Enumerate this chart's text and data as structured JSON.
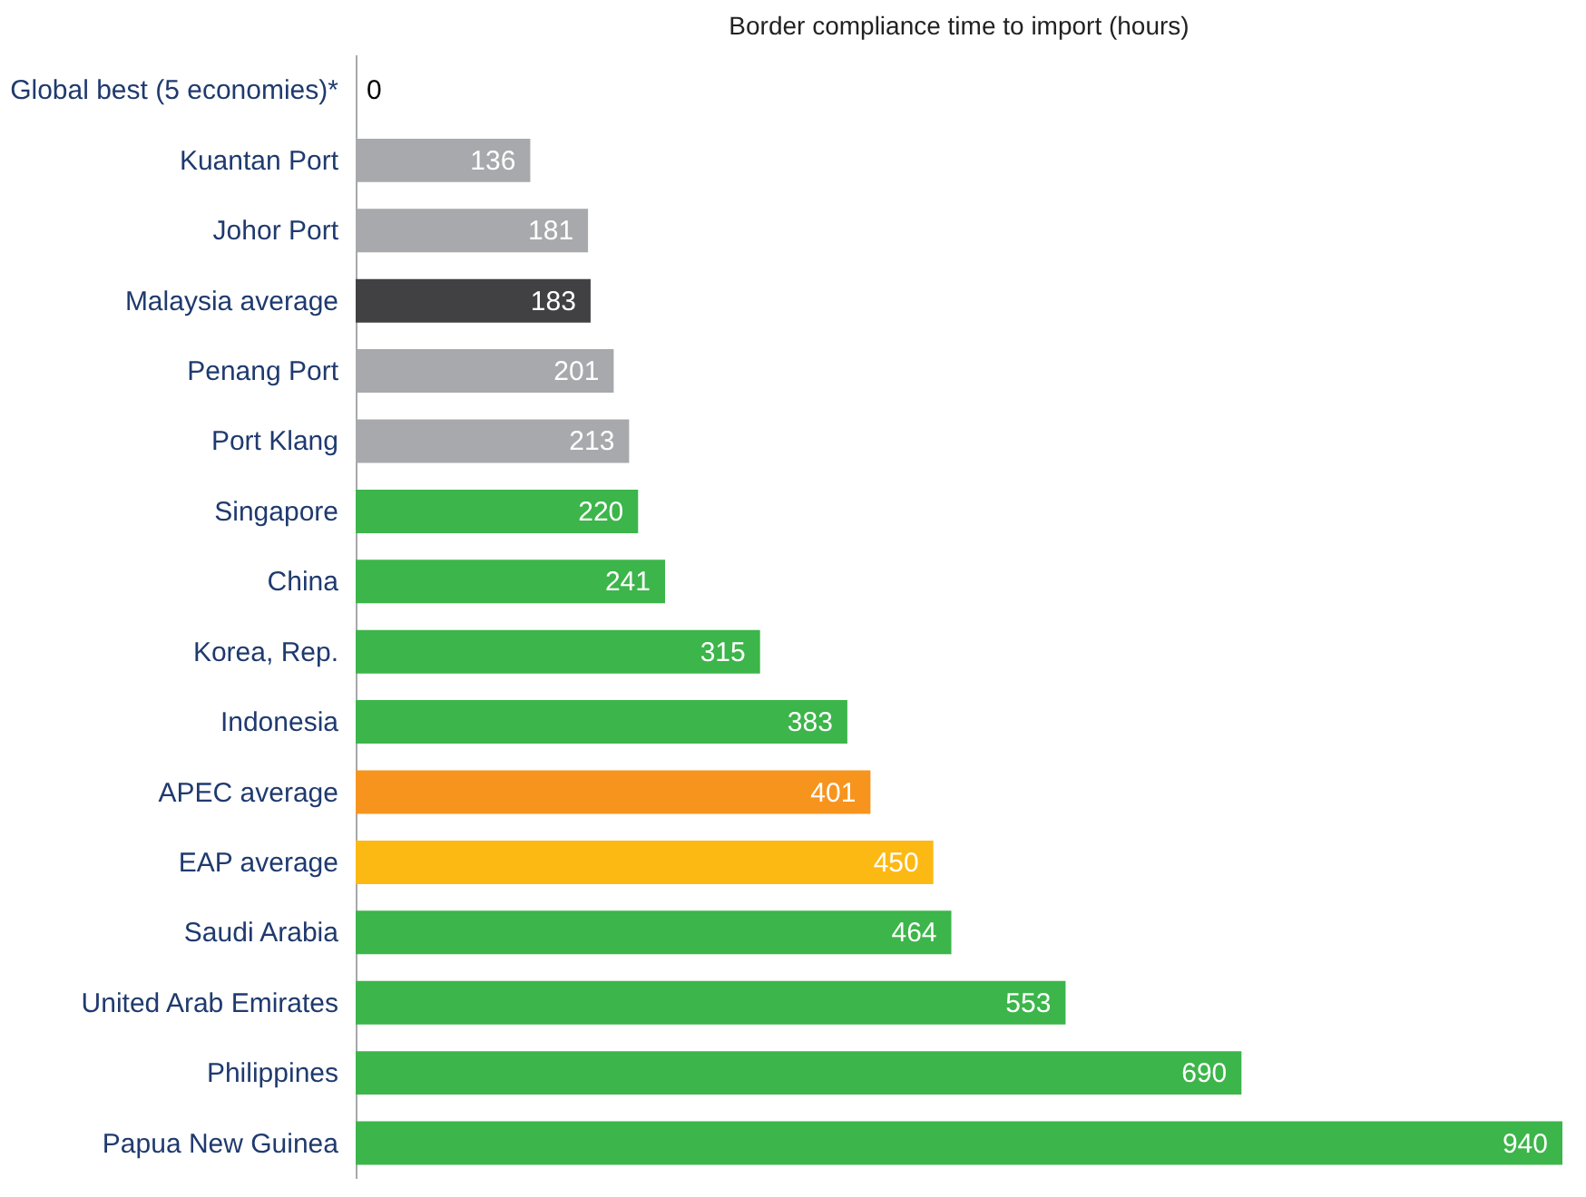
{
  "chart_data": {
    "type": "bar",
    "orientation": "horizontal",
    "title": "Border compliance time to import (hours)",
    "categories": [
      "Global best (5 economies)*",
      "Kuantan Port",
      "Johor Port",
      "Malaysia average",
      "Penang Port",
      "Port Klang",
      "Singapore",
      "China",
      "Korea, Rep.",
      "Indonesia",
      "APEC average",
      "EAP average",
      "Saudi Arabia",
      "United Arab Emirates",
      "Philippines",
      "Papua New Guinea"
    ],
    "values": [
      0,
      136,
      181,
      183,
      201,
      213,
      220,
      241,
      315,
      383,
      401,
      450,
      464,
      553,
      690,
      940
    ],
    "colors": [
      "#3cb54a",
      "#a7a9ac",
      "#a7a9ac",
      "#414042",
      "#a7a9ac",
      "#a7a9ac",
      "#3cb54a",
      "#3cb54a",
      "#3cb54a",
      "#3cb54a",
      "#f7941d",
      "#fdb913",
      "#3cb54a",
      "#3cb54a",
      "#3cb54a",
      "#3cb54a"
    ],
    "xlim": [
      0,
      940
    ],
    "tick_labels": "y",
    "data_labels": true,
    "grid": false
  }
}
